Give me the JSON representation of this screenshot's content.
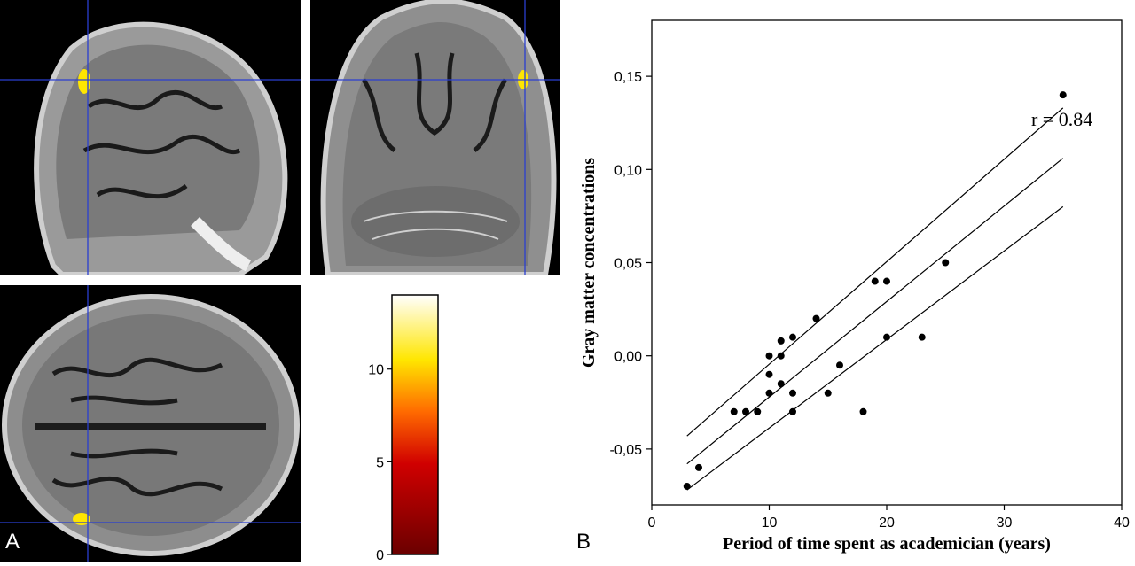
{
  "panel_labels": {
    "a": "A",
    "b": "B"
  },
  "colorbar": {
    "ticks": [
      {
        "v": 0,
        "label": "0"
      },
      {
        "v": 5,
        "label": "5"
      },
      {
        "v": 10,
        "label": "10"
      }
    ],
    "max": 14,
    "colors": {
      "bottom": "#6b0000",
      "low": "#d00000",
      "mid": "#ff6a00",
      "high": "#ffe600",
      "top": "#ffffff"
    }
  },
  "chart_data": {
    "type": "scatter",
    "title": "",
    "xlabel": "Period of time spent as academician (years)",
    "ylabel": "Gray matter concentrations",
    "xlim": [
      0,
      40
    ],
    "ylim": [
      -0.08,
      0.18
    ],
    "xticks": [
      {
        "v": 0,
        "label": "0"
      },
      {
        "v": 10,
        "label": "10"
      },
      {
        "v": 20,
        "label": "20"
      },
      {
        "v": 30,
        "label": "30"
      },
      {
        "v": 40,
        "label": "40"
      }
    ],
    "yticks": [
      {
        "v": -0.05,
        "label": "-0,05"
      },
      {
        "v": 0.0,
        "label": "0,00"
      },
      {
        "v": 0.05,
        "label": "0,05"
      },
      {
        "v": 0.1,
        "label": "0,10"
      },
      {
        "v": 0.15,
        "label": "0,15"
      }
    ],
    "annotation": "r = 0.84",
    "points": [
      {
        "x": 3,
        "y": -0.07
      },
      {
        "x": 4,
        "y": -0.06
      },
      {
        "x": 7,
        "y": -0.03
      },
      {
        "x": 8,
        "y": -0.03
      },
      {
        "x": 9,
        "y": -0.03
      },
      {
        "x": 10,
        "y": -0.02
      },
      {
        "x": 10,
        "y": -0.01
      },
      {
        "x": 10,
        "y": 0.0
      },
      {
        "x": 11,
        "y": 0.0
      },
      {
        "x": 11,
        "y": 0.008
      },
      {
        "x": 11,
        "y": -0.015
      },
      {
        "x": 12,
        "y": 0.01
      },
      {
        "x": 12,
        "y": -0.02
      },
      {
        "x": 12,
        "y": -0.03
      },
      {
        "x": 14,
        "y": 0.02
      },
      {
        "x": 15,
        "y": -0.02
      },
      {
        "x": 16,
        "y": -0.005
      },
      {
        "x": 18,
        "y": -0.03
      },
      {
        "x": 19,
        "y": 0.04
      },
      {
        "x": 20,
        "y": 0.04
      },
      {
        "x": 20,
        "y": 0.01
      },
      {
        "x": 23,
        "y": 0.01
      },
      {
        "x": 25,
        "y": 0.05
      },
      {
        "x": 35,
        "y": 0.14
      }
    ],
    "regression": {
      "x": [
        3,
        35
      ],
      "y": [
        -0.058,
        0.106
      ]
    },
    "ci_upper": {
      "x": [
        3,
        35
      ],
      "y": [
        -0.043,
        0.133
      ]
    },
    "ci_lower": {
      "x": [
        3,
        35
      ],
      "y": [
        -0.072,
        0.08
      ]
    }
  }
}
